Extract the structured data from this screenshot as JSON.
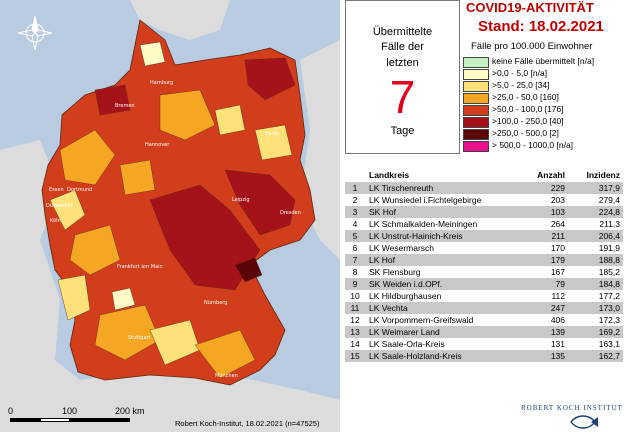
{
  "map": {
    "cities": [
      "Hamburg",
      "Bremen",
      "Hannover",
      "Berlin",
      "Leipzig",
      "Dresden",
      "Essen",
      "Dortmund",
      "Düsseldorf",
      "Köln",
      "Frankfurt am Main",
      "Nürnberg",
      "Stuttgart",
      "München"
    ],
    "scale": {
      "labels": [
        "0",
        "100",
        "200 km"
      ]
    },
    "credit": "Robert Koch-Institut, 18.02.2021 (n=47525)"
  },
  "box": {
    "line1": "Übermittelte",
    "line2": "Fälle der",
    "line3": "letzten",
    "number": "7",
    "line4": "Tage"
  },
  "title": {
    "line1": "COVID19-AKTIVITÄT",
    "line2": "Stand: 18.02.2021",
    "subtitle": "Fälle pro 100.000 Einwohner"
  },
  "legend": [
    {
      "label": "keine Fälle übermittelt [n/a]",
      "color": "#c5f0c0"
    },
    {
      "label": ">0,0 - 5,0 [n/a]",
      "color": "#fffcc8"
    },
    {
      "label": ">5,0 - 25,0 [34]",
      "color": "#ffe17a"
    },
    {
      "label": ">25,0 - 50,0 [160]",
      "color": "#f5a623"
    },
    {
      "label": ">50,0 - 100,0 [176]",
      "color": "#d23d1c"
    },
    {
      "label": ">100,0 - 250,0 [40]",
      "color": "#a5121a"
    },
    {
      "label": ">250,0 - 500,0 [2]",
      "color": "#5c0509"
    },
    {
      "label": "> 500,0 - 1000,0 [n/a]",
      "color": "#e8138c"
    }
  ],
  "table": {
    "headers": {
      "name": "Landkreis",
      "count": "Anzahl",
      "incidence": "Inzidenz"
    },
    "rows": [
      {
        "rank": "1",
        "name": "LK Tirschenreuth",
        "count": "229",
        "incidence": "317,9"
      },
      {
        "rank": "2",
        "name": "LK Wunsiedel i.Fichtelgebirge",
        "count": "203",
        "incidence": "279,4"
      },
      {
        "rank": "3",
        "name": "SK Hof",
        "count": "103",
        "incidence": "224,8"
      },
      {
        "rank": "4",
        "name": "LK Schmalkalden-Meiningen",
        "count": "264",
        "incidence": "211,3"
      },
      {
        "rank": "5",
        "name": "LK Unstrut-Hainich-Kreis",
        "count": "211",
        "incidence": "206,4"
      },
      {
        "rank": "6",
        "name": "LK Wesermarsch",
        "count": "170",
        "incidence": "191,9"
      },
      {
        "rank": "7",
        "name": "LK Hof",
        "count": "179",
        "incidence": "188,8"
      },
      {
        "rank": "8",
        "name": "SK Flensburg",
        "count": "167",
        "incidence": "185,2"
      },
      {
        "rank": "9",
        "name": "SK Weiden i.d.OPf.",
        "count": "79",
        "incidence": "184,8"
      },
      {
        "rank": "10",
        "name": "LK Hildburghausen",
        "count": "112",
        "incidence": "177,2"
      },
      {
        "rank": "11",
        "name": "LK Vechta",
        "count": "247",
        "incidence": "173,0"
      },
      {
        "rank": "12",
        "name": "LK Vorpommern-Greifswald",
        "count": "406",
        "incidence": "172,3"
      },
      {
        "rank": "13",
        "name": "LK Weimarer Land",
        "count": "139",
        "incidence": "169,2"
      },
      {
        "rank": "14",
        "name": "LK Saale-Orla-Kreis",
        "count": "131",
        "incidence": "163,1"
      },
      {
        "rank": "15",
        "name": "LK Saale-Holzland-Kreis",
        "count": "135",
        "incidence": "162,7"
      }
    ]
  },
  "logo": {
    "text": "ROBERT KOCH INSTITUT"
  },
  "colors": {
    "title": "#c00000",
    "seven": "#e2001a",
    "water": "#b9cbe0",
    "neighbors": "#dcdcdc"
  }
}
